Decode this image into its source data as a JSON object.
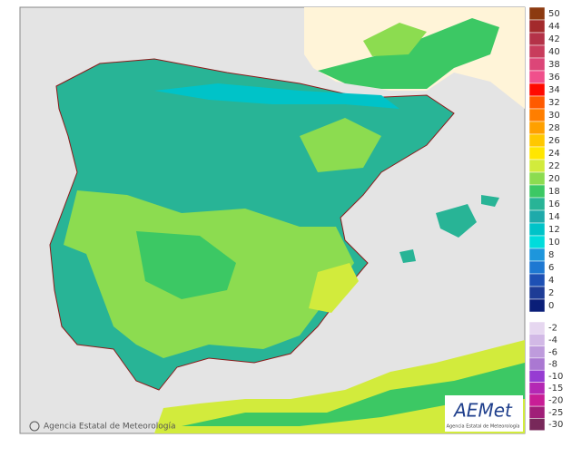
{
  "map": {
    "credit": "Agencia Estatal de Meteorología",
    "logo": {
      "name": "AEMet",
      "subtitle": "Agencia Estatal de Meteorología"
    },
    "legend": {
      "upper": [
        {
          "label": 50,
          "color": "#8c3a10"
        },
        {
          "label": 44,
          "color": "#a32a2c"
        },
        {
          "label": 42,
          "color": "#b43248"
        },
        {
          "label": 40,
          "color": "#c83c5c"
        },
        {
          "label": 38,
          "color": "#dc4678"
        },
        {
          "label": 36,
          "color": "#f0508c"
        },
        {
          "label": 34,
          "color": "#ff0a00"
        },
        {
          "label": 32,
          "color": "#ff5a00"
        },
        {
          "label": 30,
          "color": "#ff7e00"
        },
        {
          "label": 28,
          "color": "#ffa000"
        },
        {
          "label": 26,
          "color": "#ffc800"
        },
        {
          "label": 24,
          "color": "#ffe600"
        },
        {
          "label": 22,
          "color": "#d2eb3c"
        },
        {
          "label": 20,
          "color": "#8cdc50"
        },
        {
          "label": 18,
          "color": "#3cc864"
        },
        {
          "label": 16,
          "color": "#28b496"
        },
        {
          "label": 14,
          "color": "#1eaaaa"
        },
        {
          "label": 12,
          "color": "#00c3c8"
        },
        {
          "label": 10,
          "color": "#00dcdc"
        },
        {
          "label": 8,
          "color": "#1e96dc"
        },
        {
          "label": 6,
          "color": "#1e78d2"
        },
        {
          "label": 4,
          "color": "#1e50b4"
        },
        {
          "label": 2,
          "color": "#1e3c96"
        },
        {
          "label": 0,
          "color": "#0a1e78"
        }
      ],
      "lower": [
        {
          "label": -2,
          "color": "#e6d7f0"
        },
        {
          "label": -4,
          "color": "#d2b9e6"
        },
        {
          "label": -6,
          "color": "#be9bdc"
        },
        {
          "label": -8,
          "color": "#aa78d2"
        },
        {
          "label": -10,
          "color": "#963cd2"
        },
        {
          "label": -15,
          "color": "#b428b4"
        },
        {
          "label": -20,
          "color": "#c81e96"
        },
        {
          "label": -25,
          "color": "#a01e78"
        },
        {
          "label": -30,
          "color": "#78285a"
        }
      ]
    }
  }
}
